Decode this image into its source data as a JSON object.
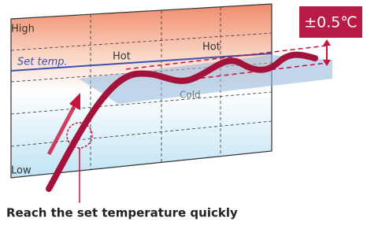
{
  "labels": {
    "high": "High",
    "set_temp": "Set temp.",
    "low": "Low",
    "hot_1": "Hot",
    "hot_2": "Hot",
    "cold": "Cold"
  },
  "badge": "±0.5℃",
  "caption": "Reach the set temperature quickly"
}
